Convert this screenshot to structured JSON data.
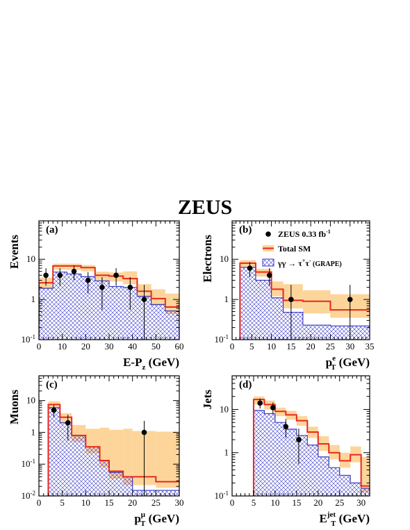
{
  "page": {
    "title": "ZEUS"
  },
  "legend": {
    "items": [
      {
        "kind": "data",
        "label": "ZEUS 0.33 fb",
        "sup": "-1"
      },
      {
        "kind": "sm",
        "label": "Total SM"
      },
      {
        "kind": "grape",
        "label": "γγ → τ",
        "sup1": "+",
        "mid": "τ",
        "sup2": "-",
        "tail": " (GRAPE)"
      }
    ]
  },
  "colors": {
    "total_sm": "#e8271e",
    "band": "#fdd59a",
    "grape": "#3a3ac8",
    "data": "#000000"
  },
  "chart_data": [
    {
      "panel": "(a)",
      "type": "histogram",
      "ylabel": "Events",
      "xlabel": {
        "main": "E-P",
        "sub": "z",
        "unit": " (GeV)"
      },
      "xlim": [
        0,
        60
      ],
      "xticks": [
        0,
        10,
        20,
        30,
        40,
        50,
        60
      ],
      "ylim": [
        0.1,
        90
      ],
      "yscale": "log",
      "yticks": [
        {
          "v": 0.1,
          "base": "10",
          "exp": "-1"
        },
        {
          "v": 1,
          "label": "1"
        },
        {
          "v": 10,
          "label": "10"
        }
      ],
      "bins": [
        0,
        6,
        12,
        18,
        24,
        30,
        36,
        42,
        48,
        54,
        60
      ],
      "total_sm": [
        2.6,
        6.8,
        6.8,
        6.2,
        4.0,
        3.8,
        3.3,
        1.6,
        1.05,
        0.65
      ],
      "band_low": [
        1.8,
        5.5,
        5.4,
        5.0,
        3.0,
        2.8,
        2.4,
        1.1,
        0.7,
        0.43
      ],
      "band_high": [
        3.5,
        7.8,
        7.8,
        7.2,
        4.9,
        4.7,
        5.0,
        2.4,
        1.8,
        1.4
      ],
      "grape": [
        1.9,
        4.8,
        4.3,
        3.7,
        2.9,
        2.1,
        2.0,
        1.2,
        0.75,
        0.52
      ],
      "data": [
        {
          "x": 3,
          "y": 4,
          "lo": 2.2,
          "hi": 6.0
        },
        {
          "x": 9,
          "y": 4,
          "lo": 2.2,
          "hi": 6.0
        },
        {
          "x": 15,
          "y": 5,
          "lo": 3.0,
          "hi": 7.0
        },
        {
          "x": 21,
          "y": 3,
          "lo": 1.4,
          "hi": 4.8
        },
        {
          "x": 27,
          "y": 2,
          "lo": 0.55,
          "hi": 3.6
        },
        {
          "x": 33,
          "y": 4,
          "lo": 2.2,
          "hi": 6.0
        },
        {
          "x": 39,
          "y": 2,
          "lo": 0.55,
          "hi": 3.6
        },
        {
          "x": 45,
          "y": 1,
          "lo": 0.1,
          "hi": 2.3
        }
      ]
    },
    {
      "panel": "(b)",
      "type": "histogram",
      "ylabel": "Electrons",
      "xlabel": {
        "main": "p",
        "sub": "T",
        "sup": "e",
        "unit": " (GeV)"
      },
      "xlim": [
        0,
        35
      ],
      "xticks": [
        0,
        5,
        10,
        15,
        20,
        25,
        30,
        35
      ],
      "ylim": [
        0.1,
        90
      ],
      "yscale": "log",
      "yticks": [
        {
          "v": 0.1,
          "base": "10",
          "exp": "-1"
        },
        {
          "v": 1,
          "label": "1"
        },
        {
          "v": 10,
          "label": "10"
        }
      ],
      "bins": [
        2,
        6,
        10,
        13,
        18,
        25,
        35
      ],
      "total_sm": [
        8.0,
        4.8,
        1.8,
        0.95,
        0.9,
        0.55
      ],
      "band_low": [
        6.5,
        3.7,
        1.2,
        0.6,
        0.45,
        0.35
      ],
      "band_high": [
        9.5,
        5.8,
        2.8,
        2.4,
        1.7,
        1.35
      ],
      "grape": [
        6.3,
        3.0,
        1.1,
        0.48,
        0.23,
        0.22
      ],
      "data": [
        {
          "x": 4.5,
          "y": 6,
          "lo": 3.6,
          "hi": 8.5
        },
        {
          "x": 9.5,
          "y": 4,
          "lo": 2.2,
          "hi": 6.0
        },
        {
          "x": 15,
          "y": 1,
          "lo": 0.1,
          "hi": 2.3
        },
        {
          "x": 30,
          "y": 1,
          "lo": 0.1,
          "hi": 2.3
        }
      ]
    },
    {
      "panel": "(c)",
      "type": "histogram",
      "ylabel": "Muons",
      "xlabel": {
        "main": "p",
        "sub": "T",
        "sup": "μ",
        "unit": " (GeV)"
      },
      "xlim": [
        0,
        30
      ],
      "xticks": [
        0,
        5,
        10,
        15,
        20,
        25,
        30
      ],
      "ylim": [
        0.01,
        60
      ],
      "yscale": "log",
      "yticks": [
        {
          "v": 0.01,
          "base": "10",
          "exp": "-2"
        },
        {
          "v": 0.1,
          "base": "10",
          "exp": "-1"
        },
        {
          "v": 1,
          "label": "1"
        },
        {
          "v": 10,
          "label": "10"
        }
      ],
      "bins": [
        2,
        4.5,
        7,
        10,
        13,
        15,
        18,
        20,
        25,
        30
      ],
      "total_sm": [
        7.5,
        3.0,
        0.8,
        0.35,
        0.13,
        0.06,
        0.04,
        0.04,
        0.028
      ],
      "band_low": [
        5.5,
        2.0,
        0.5,
        0.22,
        0.08,
        0.035,
        0.022,
        0.022,
        0.018
      ],
      "band_high": [
        9.5,
        4.0,
        1.7,
        1.3,
        1.4,
        1.2,
        1.3,
        1.1,
        1.05
      ],
      "grape": [
        6.0,
        2.0,
        0.8,
        0.35,
        0.13,
        0.055,
        0.04,
        0.015,
        0.015
      ],
      "data": [
        {
          "x": 3.2,
          "y": 5,
          "lo": 3.0,
          "hi": 7.2
        },
        {
          "x": 6.2,
          "y": 2,
          "lo": 0.55,
          "hi": 3.6
        },
        {
          "x": 22.5,
          "y": 1,
          "lo": 0.01,
          "hi": 2.3
        }
      ]
    },
    {
      "panel": "(d)",
      "type": "histogram",
      "ylabel": "Jets",
      "xlabel": {
        "main": "E",
        "sub": "T",
        "sup": "jet",
        "unit": " (GeV)"
      },
      "xlim": [
        0,
        32
      ],
      "xticks": [
        0,
        5,
        10,
        15,
        20,
        25,
        30
      ],
      "ylim": [
        0.1,
        60
      ],
      "yscale": "log",
      "yticks": [
        {
          "v": 0.1,
          "base": "10",
          "exp": "-1"
        },
        {
          "v": 1,
          "label": "1"
        },
        {
          "v": 10,
          "label": "10"
        }
      ],
      "bins": [
        5,
        7.5,
        10,
        12.5,
        15,
        17.5,
        20,
        22.5,
        25,
        27.5,
        30,
        32
      ],
      "total_sm": [
        17,
        13,
        9,
        7.5,
        5.5,
        3.0,
        1.6,
        1.0,
        0.65,
        0.9,
        0.17
      ],
      "band_low": [
        13,
        10,
        7,
        5.8,
        4.2,
        2.2,
        1.1,
        0.7,
        0.45,
        0.6,
        0.12
      ],
      "band_high": [
        20,
        16,
        11,
        9.3,
        7.0,
        4.0,
        2.4,
        1.5,
        1.0,
        1.4,
        0.8
      ],
      "grape": [
        9.5,
        8.0,
        5.0,
        3.5,
        2.5,
        1.5,
        0.8,
        0.45,
        0.3,
        0.2,
        0.15
      ],
      "data": [
        {
          "x": 6.5,
          "y": 14,
          "lo": 10.5,
          "hi": 18
        },
        {
          "x": 9.5,
          "y": 11,
          "lo": 8.0,
          "hi": 14.5
        },
        {
          "x": 12.5,
          "y": 4,
          "lo": 2.2,
          "hi": 6.0
        },
        {
          "x": 15.5,
          "y": 2,
          "lo": 0.55,
          "hi": 3.6
        }
      ]
    }
  ]
}
